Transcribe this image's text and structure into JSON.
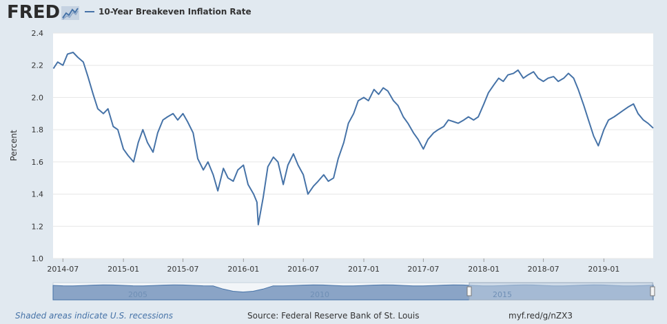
{
  "header": {
    "logo_text": "FRED",
    "logo_icon": "chart-line-icon",
    "legend_label": "10-Year Breakeven Inflation Rate"
  },
  "colors": {
    "series": "#4572a7",
    "background": "#e1e9f0",
    "plot_background": "#ffffff",
    "navigator_fill": "#8aa4c6",
    "navigator_selection": "#b7c9de"
  },
  "footer": {
    "recession_note": "Shaded areas indicate U.S. recessions",
    "source": "Source: Federal Reserve Bank of St. Louis",
    "short_url": "myf.red/g/nZX3"
  },
  "navigator": {
    "labels": [
      "2005",
      "2010",
      "2015"
    ],
    "selection_start": "2014-06-01",
    "selection_end": "2019-05-31"
  },
  "chart_data": {
    "type": "line",
    "title": "",
    "xlabel": "",
    "ylabel": "Percent",
    "xlim": [
      "2014-06-01",
      "2019-05-31"
    ],
    "ylim": [
      1.0,
      2.4
    ],
    "yticks": [
      1.0,
      1.2,
      1.4,
      1.6,
      1.8,
      2.0,
      2.2,
      2.4
    ],
    "xticks": [
      "2014-07",
      "2015-01",
      "2015-07",
      "2016-01",
      "2016-07",
      "2017-01",
      "2017-07",
      "2018-01",
      "2018-07",
      "2019-01"
    ],
    "grid": true,
    "legend": "top-left",
    "series": [
      {
        "name": "10-Year Breakeven Inflation Rate",
        "x": [
          "2014-06-02",
          "2014-06-15",
          "2014-07-01",
          "2014-07-15",
          "2014-08-01",
          "2014-08-15",
          "2014-09-01",
          "2014-09-15",
          "2014-10-01",
          "2014-10-15",
          "2014-11-01",
          "2014-11-15",
          "2014-12-01",
          "2014-12-15",
          "2015-01-01",
          "2015-01-15",
          "2015-02-01",
          "2015-02-15",
          "2015-03-01",
          "2015-03-15",
          "2015-04-01",
          "2015-04-15",
          "2015-05-01",
          "2015-05-15",
          "2015-06-01",
          "2015-06-15",
          "2015-07-01",
          "2015-07-15",
          "2015-08-01",
          "2015-08-15",
          "2015-09-01",
          "2015-09-15",
          "2015-10-01",
          "2015-10-15",
          "2015-11-01",
          "2015-11-15",
          "2015-12-01",
          "2015-12-15",
          "2016-01-01",
          "2016-01-15",
          "2016-02-01",
          "2016-02-11",
          "2016-02-15",
          "2016-03-01",
          "2016-03-15",
          "2016-04-01",
          "2016-04-15",
          "2016-05-01",
          "2016-05-15",
          "2016-06-01",
          "2016-06-15",
          "2016-07-01",
          "2016-07-15",
          "2016-08-01",
          "2016-08-15",
          "2016-09-01",
          "2016-09-15",
          "2016-10-01",
          "2016-10-15",
          "2016-11-01",
          "2016-11-15",
          "2016-12-01",
          "2016-12-15",
          "2017-01-01",
          "2017-01-15",
          "2017-02-01",
          "2017-02-15",
          "2017-03-01",
          "2017-03-15",
          "2017-04-01",
          "2017-04-15",
          "2017-05-01",
          "2017-05-15",
          "2017-06-01",
          "2017-06-15",
          "2017-07-01",
          "2017-07-15",
          "2017-08-01",
          "2017-08-15",
          "2017-09-01",
          "2017-09-15",
          "2017-10-01",
          "2017-10-15",
          "2017-11-01",
          "2017-11-15",
          "2017-12-01",
          "2017-12-15",
          "2018-01-01",
          "2018-01-15",
          "2018-02-01",
          "2018-02-15",
          "2018-03-01",
          "2018-03-15",
          "2018-04-01",
          "2018-04-15",
          "2018-05-01",
          "2018-05-15",
          "2018-06-01",
          "2018-06-15",
          "2018-07-01",
          "2018-07-15",
          "2018-08-01",
          "2018-08-15",
          "2018-09-01",
          "2018-09-15",
          "2018-10-01",
          "2018-10-15",
          "2018-11-01",
          "2018-11-15",
          "2018-12-01",
          "2018-12-15",
          "2019-01-01",
          "2019-01-15",
          "2019-02-01",
          "2019-02-15",
          "2019-03-01",
          "2019-03-15",
          "2019-04-01",
          "2019-04-15",
          "2019-05-01",
          "2019-05-15",
          "2019-05-31"
        ],
        "values": [
          2.18,
          2.22,
          2.2,
          2.27,
          2.28,
          2.25,
          2.22,
          2.13,
          2.02,
          1.93,
          1.9,
          1.93,
          1.82,
          1.8,
          1.68,
          1.64,
          1.6,
          1.72,
          1.8,
          1.72,
          1.66,
          1.78,
          1.86,
          1.88,
          1.9,
          1.86,
          1.9,
          1.85,
          1.78,
          1.62,
          1.55,
          1.6,
          1.52,
          1.42,
          1.56,
          1.5,
          1.48,
          1.55,
          1.58,
          1.46,
          1.4,
          1.35,
          1.21,
          1.38,
          1.57,
          1.63,
          1.6,
          1.46,
          1.58,
          1.65,
          1.58,
          1.52,
          1.4,
          1.45,
          1.48,
          1.52,
          1.48,
          1.5,
          1.62,
          1.72,
          1.84,
          1.9,
          1.98,
          2.0,
          1.98,
          2.05,
          2.02,
          2.06,
          2.04,
          1.98,
          1.95,
          1.88,
          1.84,
          1.78,
          1.74,
          1.68,
          1.74,
          1.78,
          1.8,
          1.82,
          1.86,
          1.85,
          1.84,
          1.86,
          1.88,
          1.86,
          1.88,
          1.96,
          2.03,
          2.08,
          2.12,
          2.1,
          2.14,
          2.15,
          2.17,
          2.12,
          2.14,
          2.16,
          2.12,
          2.1,
          2.12,
          2.13,
          2.1,
          2.12,
          2.15,
          2.12,
          2.05,
          1.95,
          1.86,
          1.76,
          1.7,
          1.8,
          1.86,
          1.88,
          1.9,
          1.92,
          1.94,
          1.96,
          1.9,
          1.86,
          1.84,
          1.81
        ]
      }
    ]
  }
}
